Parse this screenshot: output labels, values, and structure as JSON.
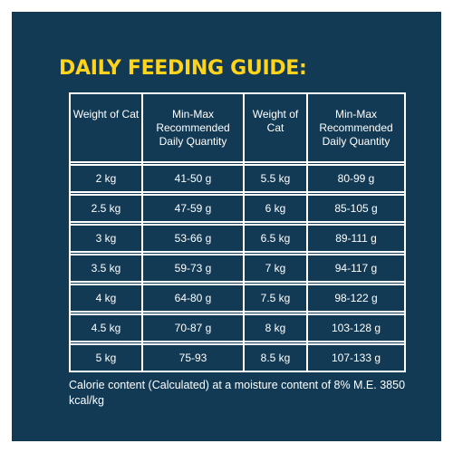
{
  "title": "DAILY FEEDING GUIDE:",
  "headers": {
    "weight_1": "Weight of Cat",
    "quantity_1": "Min-Max Recommended Daily Quantity",
    "weight_2": "Weight of Cat",
    "quantity_2": "Min-Max Recommended Daily Quantity"
  },
  "rows": [
    {
      "weight_a": "2 kg",
      "qty_a": "41-50 g",
      "weight_b": "5.5 kg",
      "qty_b": "80-99 g"
    },
    {
      "weight_a": "2.5 kg",
      "qty_a": "47-59 g",
      "weight_b": "6 kg",
      "qty_b": "85-105 g"
    },
    {
      "weight_a": "3 kg",
      "qty_a": "53-66 g",
      "weight_b": "6.5 kg",
      "qty_b": "89-111 g"
    },
    {
      "weight_a": "3.5 kg",
      "qty_a": "59-73 g",
      "weight_b": "7 kg",
      "qty_b": "94-117 g"
    },
    {
      "weight_a": "4 kg",
      "qty_a": "64-80 g",
      "weight_b": "7.5 kg",
      "qty_b": "98-122 g"
    },
    {
      "weight_a": "4.5 kg",
      "qty_a": "70-87 g",
      "weight_b": "8 kg",
      "qty_b": "103-128 g"
    },
    {
      "weight_a": "5 kg",
      "qty_a": "75-93",
      "weight_b": "8.5 kg",
      "qty_b": "107-133 g"
    }
  ],
  "footnote": "Calorie content (Calculated) at a moisture content of 8% M.E. 3850 kcal/kg",
  "colors": {
    "background": "#123a54",
    "title": "#ffd41a",
    "text": "#ffffff"
  }
}
